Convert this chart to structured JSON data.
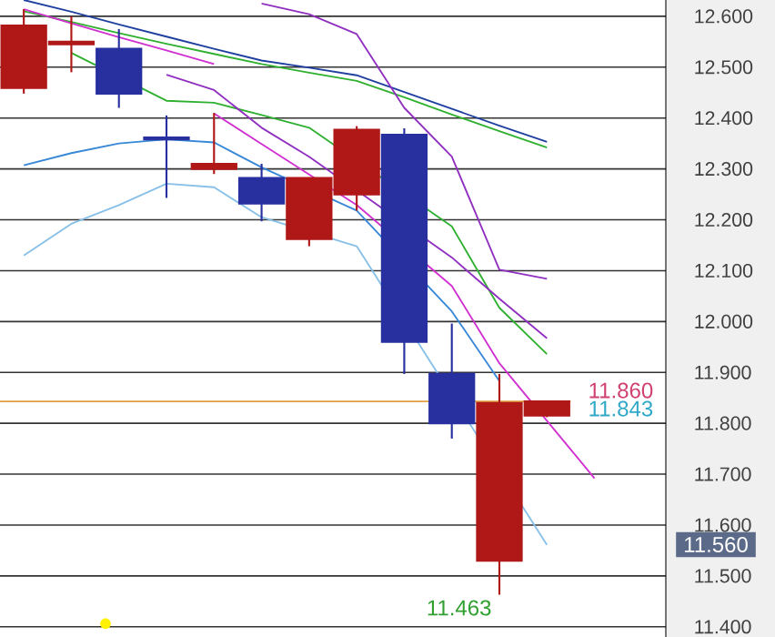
{
  "chart_data": {
    "type": "candlestick",
    "categories": [
      null,
      null,
      null,
      null,
      null,
      null,
      null,
      null,
      null,
      null,
      null,
      null,
      null,
      null
    ],
    "ohlc": [
      [
        12.459,
        12.614,
        12.448,
        12.582
      ],
      [
        12.545,
        12.6,
        12.49,
        12.55
      ],
      [
        12.536,
        12.575,
        12.42,
        12.448
      ],
      [
        12.362,
        12.405,
        12.243,
        12.358
      ],
      [
        12.3,
        12.41,
        12.29,
        12.31
      ],
      [
        12.282,
        12.31,
        12.197,
        12.232
      ],
      [
        12.162,
        12.282,
        12.148,
        12.282
      ],
      [
        12.25,
        12.384,
        12.218,
        12.377
      ],
      [
        12.367,
        12.38,
        11.897,
        11.96
      ],
      [
        11.897,
        11.996,
        11.77,
        11.8
      ],
      [
        11.53,
        11.897,
        11.463,
        11.84
      ],
      [
        11.815,
        11.845,
        11.812,
        11.843
      ],
      null,
      null
    ],
    "colors": [
      "#b01818",
      "#b01818",
      "#2830a0",
      "#2830a0",
      "#b01818",
      "#2830a0",
      "#b01818",
      "#b01818",
      "#2830a0",
      "#2830a0",
      "#b01818",
      "#b01818",
      null,
      null
    ],
    "series": [
      {
        "type": "line",
        "color": "#2040a0",
        "values": [
          12.632,
          12.609,
          12.584,
          12.56,
          12.536,
          12.513,
          12.499,
          12.484,
          12.451,
          12.418,
          12.385,
          12.353,
          null,
          null
        ]
      },
      {
        "type": "line",
        "color": "#30b030",
        "values": [
          12.61,
          12.589,
          12.567,
          12.546,
          12.526,
          12.506,
          12.489,
          12.473,
          12.441,
          12.407,
          12.374,
          12.342,
          null,
          null
        ]
      },
      {
        "type": "line",
        "color": "#30b030",
        "values": [
          null,
          12.528,
          null,
          12.434,
          12.43,
          12.406,
          12.381,
          null,
          null,
          12.187,
          12.027,
          11.936,
          null,
          null
        ]
      },
      {
        "type": "line",
        "color": "#9030c0",
        "values": [
          null,
          null,
          null,
          null,
          null,
          12.625,
          12.604,
          12.565,
          12.42,
          12.324,
          12.102,
          12.084,
          null,
          null
        ]
      },
      {
        "type": "line",
        "color": "#9030c0",
        "values": [
          null,
          null,
          null,
          12.485,
          12.455,
          12.381,
          12.324,
          null,
          null,
          12.126,
          12.045,
          11.967,
          null,
          null
        ]
      },
      {
        "type": "line",
        "color": "#d030d0",
        "values": [
          12.614,
          12.586,
          12.559,
          12.533,
          12.506,
          null,
          null,
          null,
          null,
          null,
          null,
          null,
          null,
          null
        ]
      },
      {
        "type": "line",
        "color": "#d030d0",
        "values": [
          null,
          null,
          null,
          null,
          12.409,
          12.349,
          12.289,
          12.229,
          null,
          12.07,
          11.918,
          11.805,
          11.692,
          null
        ]
      },
      {
        "type": "line",
        "color": "#3888d8",
        "values": [
          12.307,
          12.331,
          12.35,
          12.358,
          12.352,
          12.303,
          null,
          12.218,
          null,
          12.02,
          11.883,
          null,
          null,
          null
        ]
      },
      {
        "type": "line",
        "color": "#88c0e8",
        "values": [
          12.13,
          12.192,
          12.229,
          12.271,
          12.264,
          12.205,
          null,
          12.148,
          null,
          null,
          null,
          11.561,
          null,
          null
        ]
      }
    ],
    "ref_lines": [
      {
        "axis": "y",
        "value": 11.843,
        "color": "#e0a040"
      }
    ],
    "annotations": [
      "11.463",
      "11.860",
      "11.843",
      "11.560"
    ],
    "ylim": [
      11.38,
      12.632
    ],
    "yticks": [
      {
        "value": 11.4,
        "label": "11.400"
      },
      {
        "value": 11.5,
        "label": "11.500"
      },
      {
        "value": 11.6,
        "label": "11.600"
      },
      {
        "value": 11.7,
        "label": "11.700"
      },
      {
        "value": 11.8,
        "label": "11.800"
      },
      {
        "value": 11.9,
        "label": "11.900"
      },
      {
        "value": 12.0,
        "label": "12.000"
      },
      {
        "value": 12.1,
        "label": "12.100"
      },
      {
        "value": 12.2,
        "label": "12.200"
      },
      {
        "value": 12.3,
        "label": "12.300"
      },
      {
        "value": 12.4,
        "label": "12.400"
      },
      {
        "value": 12.5,
        "label": "12.500"
      },
      {
        "value": 12.6,
        "label": "12.600"
      }
    ],
    "tick_labels": "y",
    "grid": "y"
  }
}
